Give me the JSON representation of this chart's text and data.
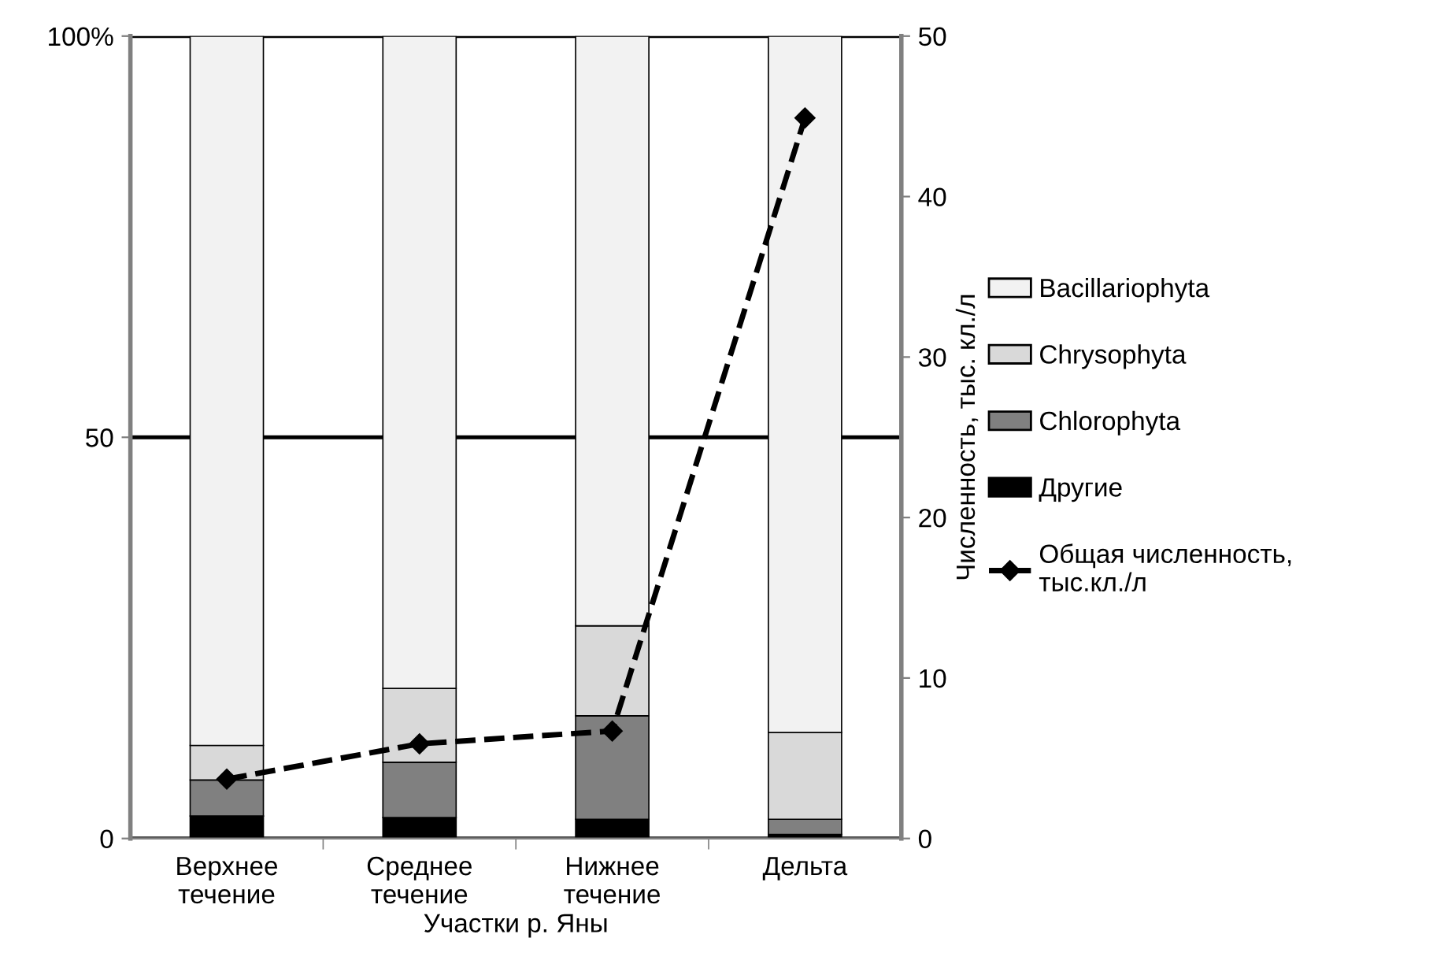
{
  "chart_data": {
    "type": "bar",
    "stacked": true,
    "xlabel": "Участки р. Яны",
    "y2label": "Численность, тыс. кл./л",
    "categories": [
      "Верхнее\nтечение",
      "Среднее\nтечение",
      "Нижнее\nтечение",
      "Дельта"
    ],
    "series": [
      {
        "name": "Другие",
        "color": "#000000",
        "values": [
          2.8,
          2.6,
          2.4,
          0.5
        ]
      },
      {
        "name": "Chlorophyta",
        "color": "#808080",
        "values": [
          4.5,
          6.9,
          12.9,
          1.9
        ]
      },
      {
        "name": "Chrysophyta",
        "color": "#d9d9d9",
        "values": [
          4.3,
          9.2,
          11.2,
          10.8
        ]
      },
      {
        "name": "Bacillariophyta",
        "color": "#f2f2f2",
        "values": [
          88.4,
          81.3,
          73.5,
          86.8
        ]
      },
      {
        "name": "Общая численность,\nтыс.кл./л",
        "type": "line",
        "axis": "y2",
        "color": "#000000",
        "marker": "diamond",
        "line_style": "dashed",
        "values": [
          3.7,
          5.9,
          6.7,
          44.9
        ]
      }
    ],
    "ylim": [
      0,
      100
    ],
    "yticks": [
      0,
      50,
      {
        "value": 100,
        "label": "100%"
      }
    ],
    "y2lim": [
      0,
      50
    ],
    "y2ticks": [
      0,
      10,
      20,
      30,
      40,
      50
    ],
    "grid": "y",
    "legend": "right"
  }
}
